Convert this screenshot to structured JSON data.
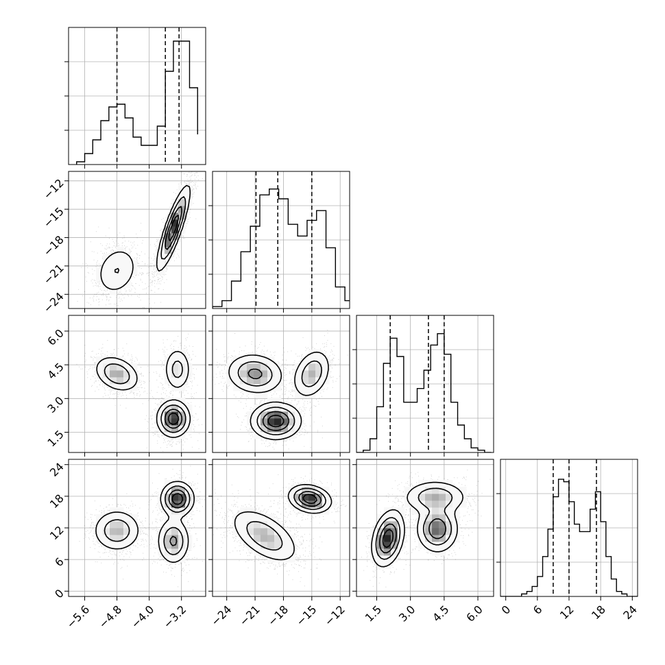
{
  "chart_data": {
    "type": "corner",
    "grid": true,
    "colors": {
      "axis": "#000000",
      "grid": "#b0b0b0",
      "hist": "#000000",
      "quantile": "#000000",
      "density": "#333333"
    },
    "parameters": [
      {
        "range": [
          -6.0,
          -2.6
        ],
        "ticks": [
          -5.6,
          -4.8,
          -4.0,
          -3.2
        ],
        "tick_labels": [
          "−5.6",
          "−4.8",
          "−4.0",
          "−3.2"
        ],
        "quantiles": [
          -4.8,
          -3.6,
          -3.26
        ]
      },
      {
        "range": [
          -25.5,
          -11.0
        ],
        "ticks": [
          -24,
          -21,
          -18,
          -15,
          -12
        ],
        "tick_labels": [
          "−24",
          "−21",
          "−18",
          "−15",
          "−12"
        ],
        "quantiles": [
          -20.9,
          -18.6,
          -15.0
        ]
      },
      {
        "range": [
          0.6,
          6.7
        ],
        "ticks": [
          1.5,
          3.0,
          4.5,
          6.0
        ],
        "tick_labels": [
          "1.5",
          "3.0",
          "4.5",
          "6.0"
        ],
        "quantiles": [
          2.1,
          3.8,
          4.5
        ]
      },
      {
        "range": [
          -1.0,
          25.0
        ],
        "ticks": [
          0,
          6,
          12,
          18,
          24
        ],
        "tick_labels": [
          "0",
          "6",
          "12",
          "18",
          "24"
        ],
        "quantiles": [
          9.0,
          12.0,
          17.2
        ]
      }
    ],
    "histograms": [
      {
        "param": 0,
        "edges": [
          -5.8,
          -5.6,
          -5.4,
          -5.2,
          -5.0,
          -4.8,
          -4.6,
          -4.4,
          -4.2,
          -4.0,
          -3.8,
          -3.6,
          -3.4,
          -3.2,
          -3.0,
          -2.8
        ],
        "counts": [
          2,
          8,
          18,
          32,
          42,
          44,
          34,
          20,
          14,
          14,
          28,
          68,
          90,
          90,
          56,
          22
        ],
        "ymax": 100
      },
      {
        "param": 1,
        "edges": [
          -25.5,
          -24.5,
          -23.5,
          -22.5,
          -21.5,
          -20.5,
          -19.5,
          -18.5,
          -17.5,
          -16.5,
          -15.5,
          -14.5,
          -13.5,
          -12.5,
          -11.5,
          -10.5
        ],
        "counts": [
          1,
          4,
          14,
          29,
          42,
          58,
          61,
          56,
          43,
          37,
          45,
          50,
          31,
          11,
          4
        ],
        "ymax": 70
      },
      {
        "param": 2,
        "edges": [
          0.6,
          0.9,
          1.2,
          1.5,
          1.8,
          2.1,
          2.4,
          2.7,
          3.0,
          3.3,
          3.6,
          3.9,
          4.2,
          4.5,
          4.8,
          5.1,
          5.4,
          5.7,
          6.0,
          6.3,
          6.6
        ],
        "counts": [
          0,
          1,
          6,
          20,
          39,
          50,
          42,
          22,
          22,
          28,
          36,
          47,
          52,
          43,
          22,
          12,
          6,
          2,
          1,
          0
        ],
        "ymax": 60
      },
      {
        "param": 3,
        "edges": [
          -1,
          0,
          1,
          2,
          3,
          4,
          5,
          6,
          7,
          8,
          9,
          10,
          11,
          12,
          13,
          14,
          15,
          16,
          17,
          18,
          19,
          20,
          21,
          22,
          23,
          24,
          25
        ],
        "counts": [
          0,
          0,
          0,
          0,
          1,
          2,
          4,
          8,
          16,
          27,
          40,
          47,
          46,
          38,
          29,
          26,
          26,
          35,
          42,
          30,
          16,
          7,
          2,
          1,
          0,
          0
        ],
        "ymax": 55
      }
    ],
    "pairs": [
      {
        "x": 0,
        "y": 1,
        "blobs": [
          {
            "cx": -4.8,
            "cy": -21.5,
            "sx": 0.28,
            "sy": 1.4,
            "rho": 0.2,
            "w": 0.35
          },
          {
            "cx": -3.4,
            "cy": -17.0,
            "sx": 0.2,
            "sy": 2.2,
            "rho": 0.85,
            "w": 0.65
          }
        ]
      },
      {
        "x": 0,
        "y": 2,
        "blobs": [
          {
            "cx": -4.8,
            "cy": 4.1,
            "sx": 0.28,
            "sy": 0.4,
            "rho": -0.3,
            "w": 0.35
          },
          {
            "cx": -3.4,
            "cy": 2.1,
            "sx": 0.2,
            "sy": 0.4,
            "rho": 0.0,
            "w": 0.45
          },
          {
            "cx": -3.3,
            "cy": 4.3,
            "sx": 0.17,
            "sy": 0.5,
            "rho": 0.0,
            "w": 0.2
          }
        ]
      },
      {
        "x": 1,
        "y": 2,
        "blobs": [
          {
            "cx": -21.0,
            "cy": 4.1,
            "sx": 1.5,
            "sy": 0.45,
            "rho": -0.1,
            "w": 0.35
          },
          {
            "cx": -18.8,
            "cy": 2.0,
            "sx": 1.3,
            "sy": 0.4,
            "rho": 0.0,
            "w": 0.42
          },
          {
            "cx": -15.0,
            "cy": 4.1,
            "sx": 1.0,
            "sy": 0.55,
            "rho": 0.3,
            "w": 0.23
          }
        ]
      },
      {
        "x": 0,
        "y": 3,
        "blobs": [
          {
            "cx": -4.8,
            "cy": 11.5,
            "sx": 0.3,
            "sy": 2.0,
            "rho": 0.0,
            "w": 0.35
          },
          {
            "cx": -3.4,
            "cy": 9.5,
            "sx": 0.2,
            "sy": 2.2,
            "rho": 0.0,
            "w": 0.3
          },
          {
            "cx": -3.3,
            "cy": 17.5,
            "sx": 0.2,
            "sy": 1.6,
            "rho": 0.0,
            "w": 0.35
          }
        ]
      },
      {
        "x": 1,
        "y": 3,
        "blobs": [
          {
            "cx": -20.0,
            "cy": 10.5,
            "sx": 1.8,
            "sy": 2.6,
            "rho": -0.55,
            "w": 0.6
          },
          {
            "cx": -15.2,
            "cy": 17.5,
            "sx": 1.1,
            "sy": 1.3,
            "rho": -0.2,
            "w": 0.4
          }
        ]
      },
      {
        "x": 2,
        "y": 3,
        "blobs": [
          {
            "cx": 2.0,
            "cy": 10.0,
            "sx": 0.35,
            "sy": 2.6,
            "rho": 0.3,
            "w": 0.38
          },
          {
            "cx": 4.2,
            "cy": 11.8,
            "sx": 0.45,
            "sy": 2.2,
            "rho": 0.0,
            "w": 0.35
          },
          {
            "cx": 4.1,
            "cy": 17.8,
            "sx": 0.7,
            "sy": 1.6,
            "rho": 0.0,
            "w": 0.27
          }
        ]
      }
    ]
  }
}
